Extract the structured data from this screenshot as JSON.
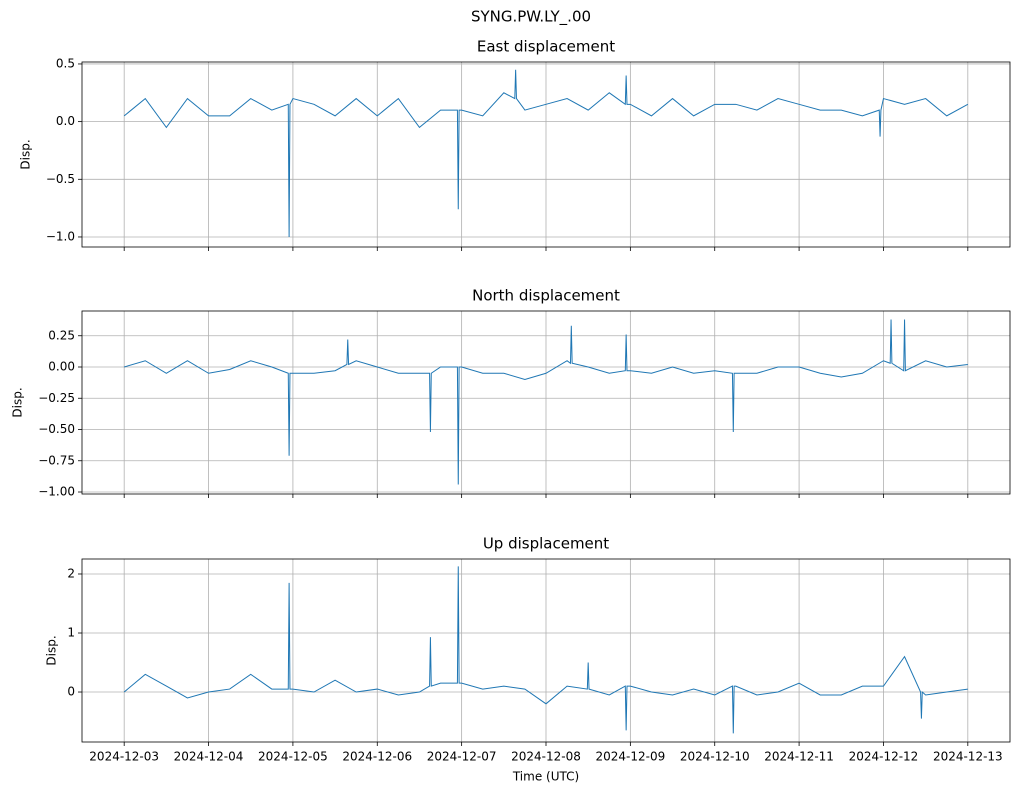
{
  "title": "SYNG.PW.LY_.00",
  "chart_data": [
    {
      "type": "line",
      "title": "East displacement",
      "ylabel": "Disp.",
      "color": "#1f77b4",
      "grid": true,
      "xlim": [
        -0.5,
        10.5
      ],
      "xticks": [
        0,
        1,
        2,
        3,
        4,
        5,
        6,
        7,
        8,
        9,
        10
      ],
      "ylim": [
        -1.087,
        0.517
      ],
      "yticks": [
        {
          "value": -1,
          "label": "−1.0"
        },
        {
          "value": -0.5,
          "label": "−0.5"
        },
        {
          "value": 0,
          "label": "0.0"
        },
        {
          "value": 0.5,
          "label": "0.5"
        }
      ],
      "x": [
        0,
        0.25,
        0.5,
        0.75,
        1,
        1.25,
        1.5,
        1.75,
        1.945,
        1.955,
        1.965,
        2,
        2.25,
        2.5,
        2.75,
        3,
        3.25,
        3.5,
        3.75,
        3.95,
        3.96,
        3.97,
        4,
        4.25,
        4.5,
        4.63,
        4.64,
        4.65,
        4.75,
        5,
        5.25,
        5.5,
        5.75,
        5.94,
        5.95,
        5.96,
        6,
        6.25,
        6.5,
        6.75,
        7,
        7.25,
        7.5,
        7.75,
        8,
        8.25,
        8.5,
        8.75,
        8.95,
        8.96,
        8.97,
        9,
        9.25,
        9.5,
        9.75,
        10
      ],
      "values": [
        0.05,
        0.2,
        -0.05,
        0.2,
        0.05,
        0.05,
        0.2,
        0.1,
        0.15,
        -1.0,
        0.15,
        0.2,
        0.15,
        0.05,
        0.2,
        0.05,
        0.2,
        -0.05,
        0.1,
        0.1,
        -0.76,
        0.1,
        0.1,
        0.05,
        0.25,
        0.2,
        0.45,
        0.2,
        0.1,
        0.15,
        0.2,
        0.1,
        0.25,
        0.15,
        0.4,
        0.15,
        0.15,
        0.05,
        0.2,
        0.05,
        0.15,
        0.15,
        0.1,
        0.2,
        0.15,
        0.1,
        0.1,
        0.05,
        0.1,
        -0.13,
        0.1,
        0.2,
        0.15,
        0.2,
        0.05,
        0.15
      ]
    },
    {
      "type": "line",
      "title": "North displacement",
      "ylabel": "Disp.",
      "color": "#1f77b4",
      "grid": true,
      "xlim": [
        -0.5,
        10.5
      ],
      "xticks": [
        0,
        1,
        2,
        3,
        4,
        5,
        6,
        7,
        8,
        9,
        10
      ],
      "ylim": [
        -1.016,
        0.448
      ],
      "yticks": [
        {
          "value": -1,
          "label": "−1.00"
        },
        {
          "value": -0.75,
          "label": "−0.75"
        },
        {
          "value": -0.5,
          "label": "−0.50"
        },
        {
          "value": -0.25,
          "label": "−0.25"
        },
        {
          "value": 0,
          "label": "0.00"
        },
        {
          "value": 0.25,
          "label": "0.25"
        }
      ],
      "x": [
        0,
        0.25,
        0.5,
        0.75,
        1,
        1.25,
        1.5,
        1.75,
        1.945,
        1.955,
        1.965,
        2,
        2.25,
        2.5,
        2.64,
        2.65,
        2.66,
        2.75,
        3,
        3.25,
        3.5,
        3.62,
        3.63,
        3.64,
        3.75,
        3.95,
        3.96,
        3.97,
        4,
        4.25,
        4.5,
        4.75,
        5,
        5.25,
        5.29,
        5.3,
        5.31,
        5.5,
        5.75,
        5.94,
        5.95,
        5.96,
        6,
        6.25,
        6.5,
        6.75,
        7,
        7.21,
        7.22,
        7.23,
        7.25,
        7.5,
        7.75,
        8,
        8.25,
        8.5,
        8.75,
        9,
        9.08,
        9.09,
        9.1,
        9.24,
        9.25,
        9.26,
        9.5,
        9.75,
        10
      ],
      "values": [
        0,
        0.05,
        -0.05,
        0.05,
        -0.05,
        -0.02,
        0.05,
        0,
        -0.05,
        -0.71,
        -0.05,
        -0.05,
        -0.05,
        -0.03,
        0.02,
        0.22,
        0.02,
        0.05,
        0,
        -0.05,
        -0.05,
        -0.05,
        -0.52,
        -0.05,
        0,
        0,
        -0.94,
        0,
        0,
        -0.05,
        -0.05,
        -0.1,
        -0.05,
        0.05,
        0.03,
        0.33,
        0.03,
        0,
        -0.05,
        -0.03,
        0.26,
        -0.03,
        -0.03,
        -0.05,
        0,
        -0.05,
        -0.03,
        -0.05,
        -0.52,
        -0.05,
        -0.05,
        -0.05,
        0,
        0,
        -0.05,
        -0.08,
        -0.05,
        0.05,
        0.03,
        0.38,
        0.03,
        -0.03,
        0.38,
        -0.03,
        0.05,
        0,
        0.02
      ]
    },
    {
      "type": "line",
      "title": "Up displacement",
      "ylabel": "Disp.",
      "xlabel": "Time (UTC)",
      "color": "#1f77b4",
      "grid": true,
      "xlim": [
        -0.5,
        10.5
      ],
      "xticks": [
        {
          "value": 0,
          "label": "2024-12-03"
        },
        {
          "value": 1,
          "label": "2024-12-04"
        },
        {
          "value": 2,
          "label": "2024-12-05"
        },
        {
          "value": 3,
          "label": "2024-12-06"
        },
        {
          "value": 4,
          "label": "2024-12-07"
        },
        {
          "value": 5,
          "label": "2024-12-08"
        },
        {
          "value": 6,
          "label": "2024-12-09"
        },
        {
          "value": 7,
          "label": "2024-12-10"
        },
        {
          "value": 8,
          "label": "2024-12-11"
        },
        {
          "value": 9,
          "label": "2024-12-12"
        },
        {
          "value": 10,
          "label": "2024-12-13"
        }
      ],
      "ylim": [
        -0.847,
        2.254
      ],
      "yticks": [
        0,
        1,
        2
      ],
      "x": [
        0,
        0.25,
        0.5,
        0.75,
        1,
        1.25,
        1.5,
        1.75,
        1.945,
        1.955,
        1.965,
        2,
        2.25,
        2.5,
        2.75,
        3,
        3.25,
        3.5,
        3.62,
        3.63,
        3.64,
        3.75,
        3.95,
        3.96,
        3.97,
        4,
        4.25,
        4.5,
        4.75,
        5,
        5.25,
        5.49,
        5.5,
        5.51,
        5.75,
        5.94,
        5.95,
        5.96,
        6,
        6.25,
        6.5,
        6.75,
        7,
        7.21,
        7.22,
        7.23,
        7.25,
        7.5,
        7.75,
        8,
        8.25,
        8.5,
        8.75,
        9,
        9.25,
        9.44,
        9.45,
        9.46,
        9.5,
        9.75,
        10
      ],
      "values": [
        0,
        0.3,
        0.1,
        -0.1,
        0,
        0.05,
        0.3,
        0.05,
        0.05,
        1.85,
        0.05,
        0.05,
        0,
        0.2,
        0,
        0.05,
        -0.05,
        0,
        0.1,
        0.93,
        0.1,
        0.15,
        0.15,
        2.13,
        0.15,
        0.15,
        0.05,
        0.1,
        0.05,
        -0.2,
        0.1,
        0.05,
        0.5,
        0.05,
        -0.05,
        0.1,
        -0.65,
        0.1,
        0.1,
        0,
        -0.05,
        0.05,
        -0.05,
        0.1,
        -0.7,
        0.1,
        0.1,
        -0.05,
        0,
        0.15,
        -0.05,
        -0.05,
        0.1,
        0.1,
        0.6,
        0,
        -0.45,
        0,
        -0.05,
        0,
        0.05
      ]
    }
  ]
}
